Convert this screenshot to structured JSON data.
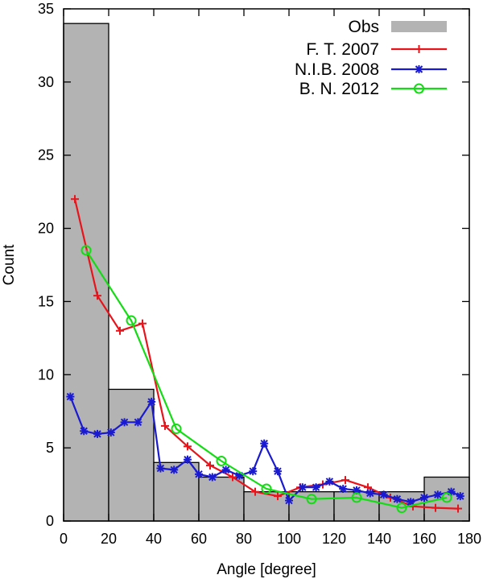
{
  "chart_data": {
    "type": "bar",
    "xlabel": "Angle [degree]",
    "ylabel": "Count",
    "xlim": [
      0,
      180
    ],
    "ylim": [
      0,
      35
    ],
    "xticks": [
      0,
      20,
      40,
      60,
      80,
      100,
      120,
      140,
      160,
      180
    ],
    "yticks": [
      0,
      5,
      10,
      15,
      20,
      25,
      30,
      35
    ],
    "grid": false,
    "legend_position": "top-right",
    "histogram": {
      "name": "Obs",
      "color": "#b3b3b3",
      "bins": [
        {
          "x0": 0,
          "x1": 20,
          "value": 34
        },
        {
          "x0": 20,
          "x1": 40,
          "value": 9
        },
        {
          "x0": 40,
          "x1": 60,
          "value": 4
        },
        {
          "x0": 60,
          "x1": 80,
          "value": 3
        },
        {
          "x0": 80,
          "x1": 100,
          "value": 2
        },
        {
          "x0": 100,
          "x1": 120,
          "value": 2
        },
        {
          "x0": 120,
          "x1": 140,
          "value": 2
        },
        {
          "x0": 140,
          "x1": 160,
          "value": 2
        },
        {
          "x0": 160,
          "x1": 180,
          "value": 3
        }
      ]
    },
    "series": [
      {
        "name": "F. T. 2007",
        "color": "#e8141c",
        "marker": "plus",
        "points": [
          [
            5,
            22
          ],
          [
            15,
            15.4
          ],
          [
            25,
            13
          ],
          [
            35,
            13.5
          ],
          [
            45,
            6.5
          ],
          [
            55,
            5.1
          ],
          [
            65,
            3.8
          ],
          [
            75,
            3
          ],
          [
            85,
            2
          ],
          [
            95,
            1.7
          ],
          [
            105,
            2.3
          ],
          [
            115,
            2.5
          ],
          [
            125,
            2.8
          ],
          [
            135,
            2.3
          ],
          [
            145,
            1.6
          ],
          [
            155,
            1.0
          ],
          [
            165,
            0.9
          ],
          [
            175,
            0.85
          ]
        ]
      },
      {
        "name": "N.I.B. 2008",
        "color": "#1a1ad0",
        "marker": "star",
        "points": [
          [
            3,
            8.5
          ],
          [
            9,
            6.15
          ],
          [
            15,
            5.95
          ],
          [
            21,
            6.05
          ],
          [
            27,
            6.75
          ],
          [
            33,
            6.75
          ],
          [
            39,
            8.15
          ],
          [
            43,
            3.6
          ],
          [
            49,
            3.5
          ],
          [
            55,
            4.2
          ],
          [
            60,
            3.2
          ],
          [
            66,
            3
          ],
          [
            72,
            3.5
          ],
          [
            78,
            3.1
          ],
          [
            84,
            3.4
          ],
          [
            89,
            5.3
          ],
          [
            95,
            3.4
          ],
          [
            100,
            1.4
          ],
          [
            106,
            2.3
          ],
          [
            112,
            2.3
          ],
          [
            118,
            2.7
          ],
          [
            124,
            2.2
          ],
          [
            130,
            2.1
          ],
          [
            136,
            1.9
          ],
          [
            142,
            1.8
          ],
          [
            148,
            1.5
          ],
          [
            154,
            1.3
          ],
          [
            160,
            1.6
          ],
          [
            166,
            1.8
          ],
          [
            172,
            2.0
          ],
          [
            176,
            1.7
          ]
        ]
      },
      {
        "name": "B. N. 2012",
        "color": "#14dc14",
        "marker": "circle",
        "points": [
          [
            10,
            18.5
          ],
          [
            30,
            13.7
          ],
          [
            50,
            6.3
          ],
          [
            70,
            4.1
          ],
          [
            90,
            2.2
          ],
          [
            110,
            1.5
          ],
          [
            130,
            1.6
          ],
          [
            150,
            0.9
          ],
          [
            170,
            1.6
          ]
        ]
      }
    ]
  }
}
